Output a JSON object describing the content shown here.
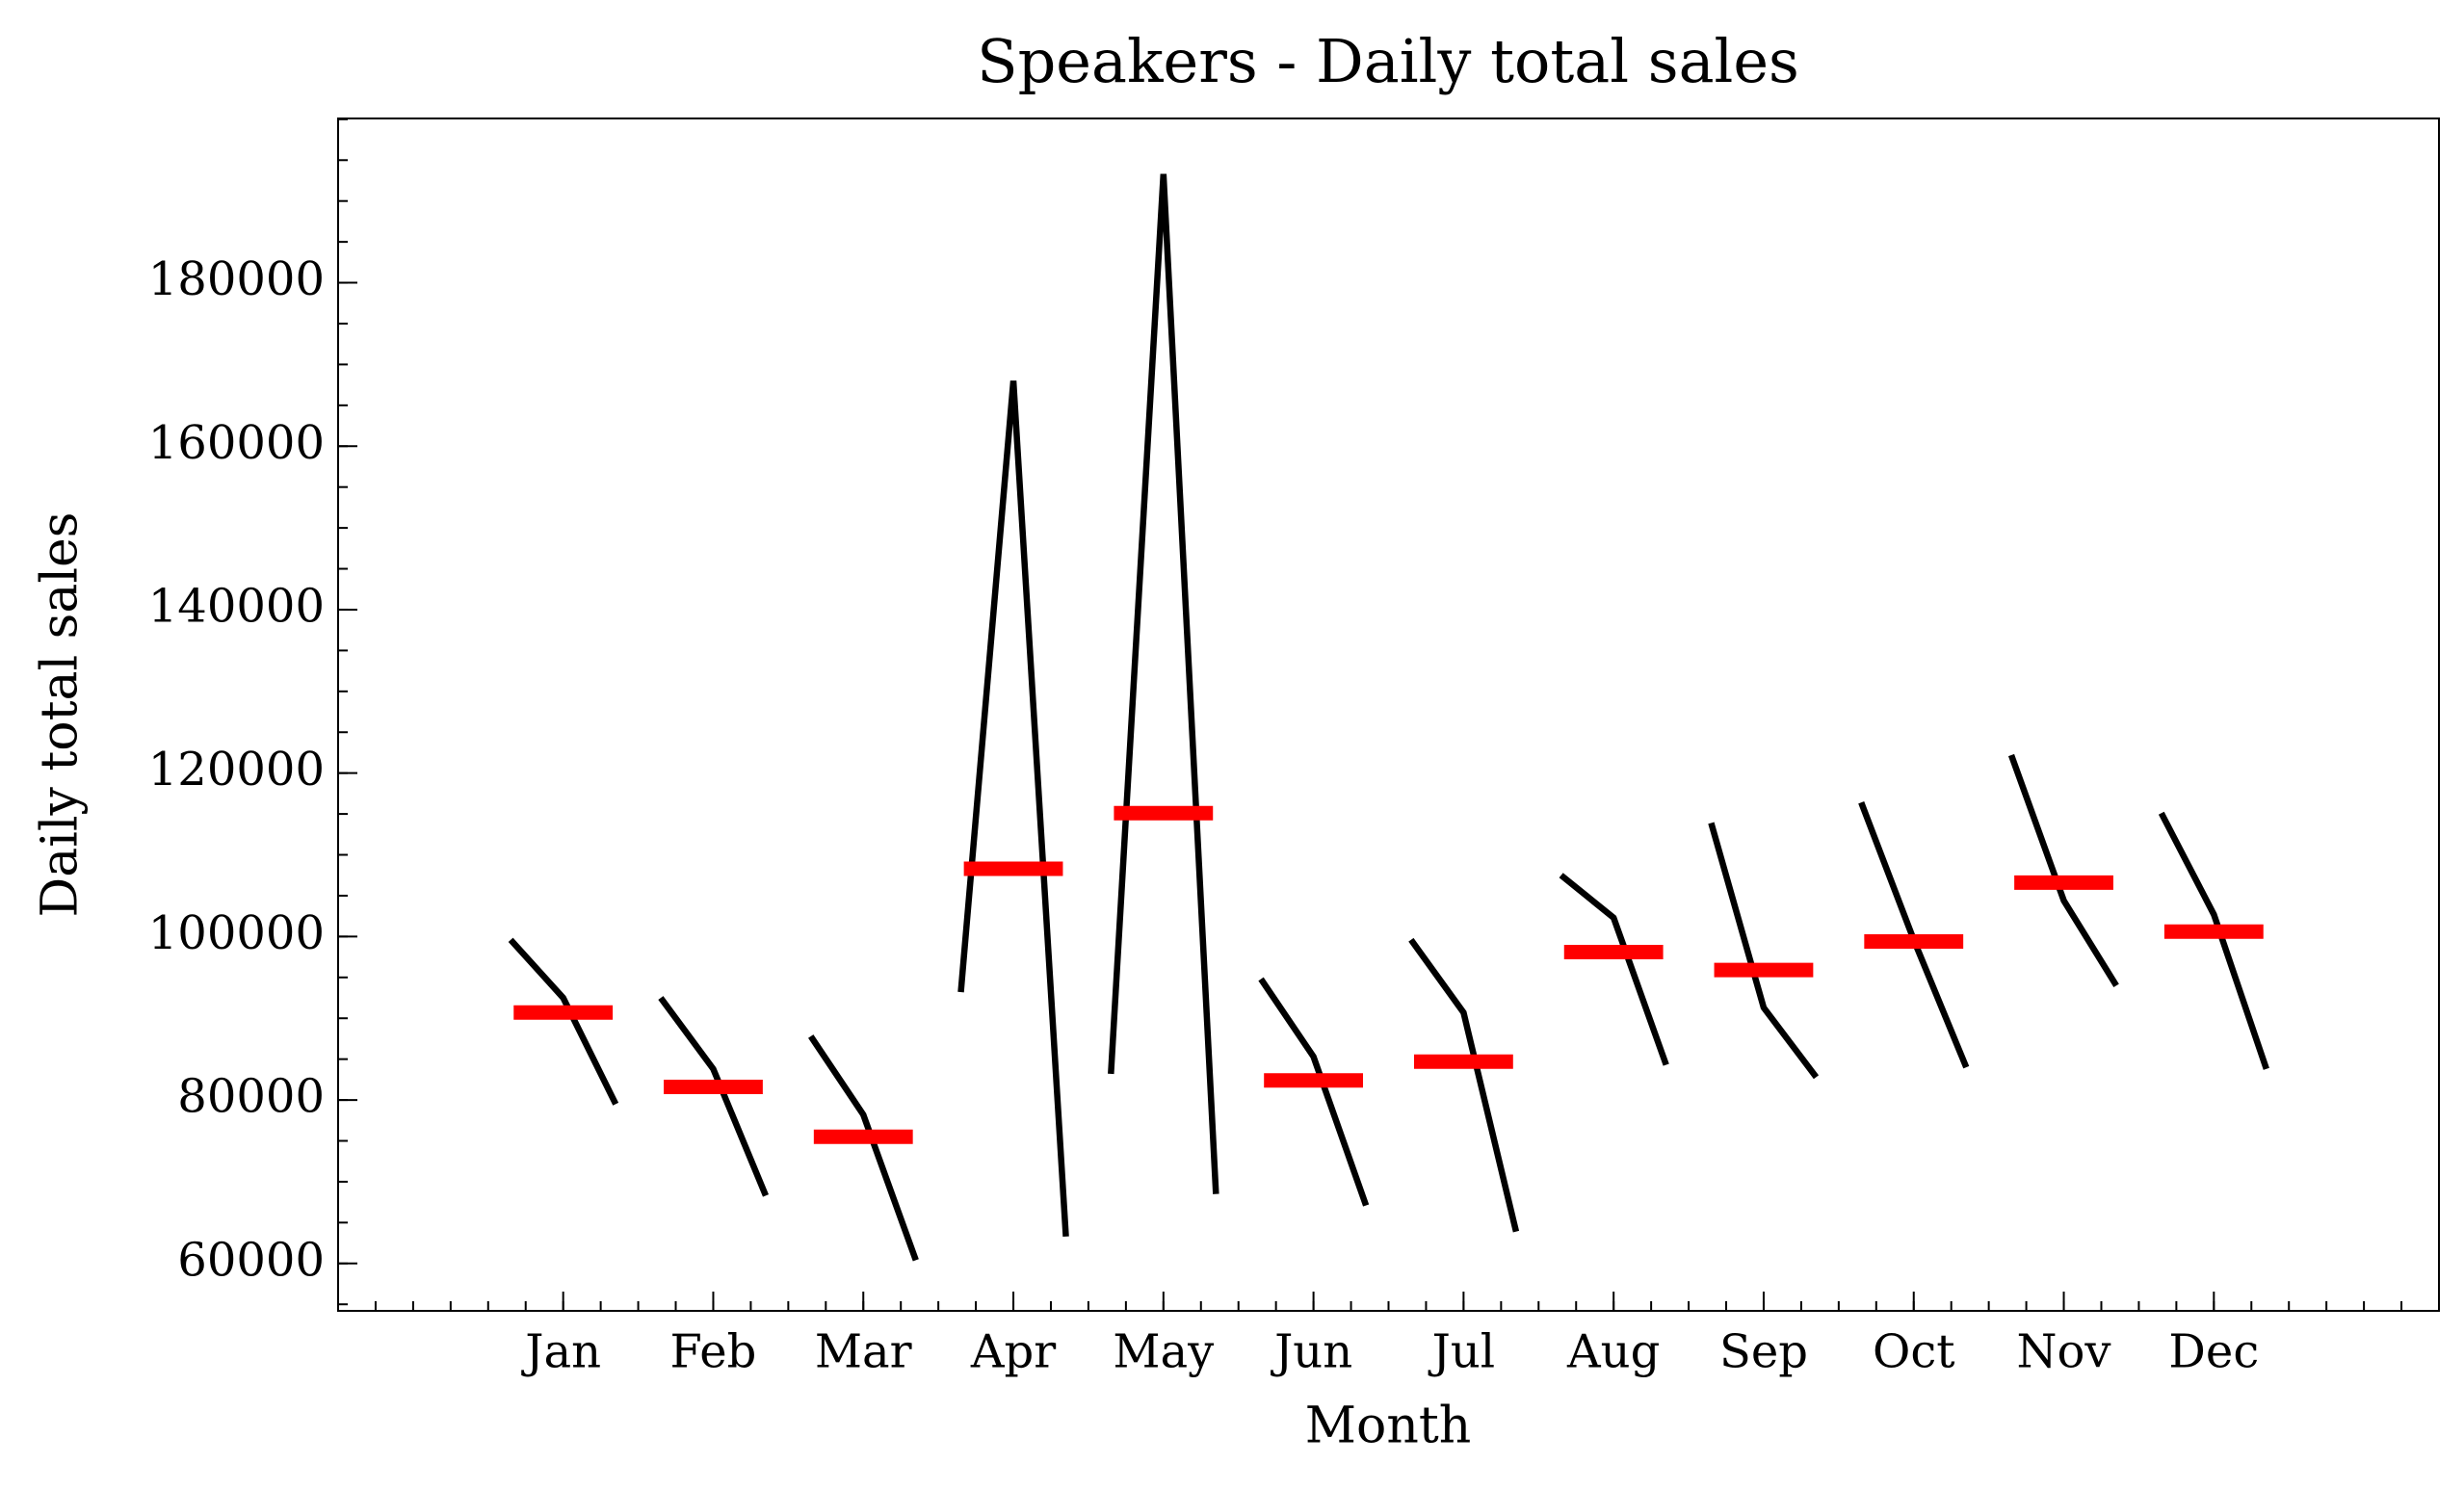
{
  "chart_data": {
    "type": "month_plot",
    "title": "Speakers - Daily total sales",
    "xlabel": "Month",
    "ylabel": "Daily total sales",
    "categories": [
      "Jan",
      "Feb",
      "Mar",
      "Apr",
      "May",
      "Jun",
      "Jul",
      "Aug",
      "Sep",
      "Oct",
      "Nov",
      "Dec"
    ],
    "values": [
      [
        99600,
        92500,
        79500
      ],
      [
        92500,
        83800,
        68300
      ],
      [
        87800,
        78200,
        60400
      ],
      [
        93200,
        168000,
        63300
      ],
      [
        83200,
        193300,
        68500
      ],
      [
        94800,
        85300,
        67100
      ],
      [
        99600,
        90700,
        63900
      ],
      [
        107500,
        102300,
        84300
      ],
      [
        113900,
        91300,
        82800
      ],
      [
        116400,
        99600,
        84000
      ],
      [
        122200,
        104400,
        94000
      ],
      [
        115100,
        102700,
        83800
      ]
    ],
    "means": [
      90700,
      81600,
      75500,
      108300,
      115100,
      82400,
      84700,
      98100,
      95900,
      99400,
      106600,
      100600
    ],
    "line_color": "#000000",
    "mean_color": "#ff0000",
    "ylim": [
      54200,
      200100
    ],
    "yticks": [
      60000,
      80000,
      100000,
      120000,
      140000,
      160000,
      180000
    ],
    "yminor": 5000
  }
}
